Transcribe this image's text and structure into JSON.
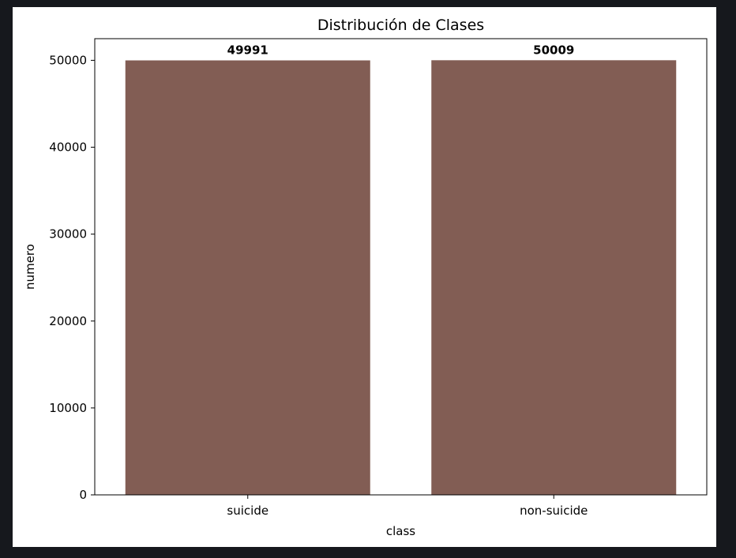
{
  "chart_data": {
    "type": "bar",
    "title": "Distribución de Clases",
    "xlabel": "class",
    "ylabel": "numero",
    "categories": [
      "suicide",
      "non-suicide"
    ],
    "values": [
      49991,
      50009
    ],
    "data_labels": [
      "49991",
      "50009"
    ],
    "ylim": [
      0,
      52490
    ],
    "yticks": [
      0,
      10000,
      20000,
      30000,
      40000,
      50000
    ],
    "ytick_labels": [
      "0",
      "10000",
      "20000",
      "30000",
      "40000",
      "50000"
    ],
    "bar_color": "#825d54",
    "grid": false,
    "legend": false
  }
}
